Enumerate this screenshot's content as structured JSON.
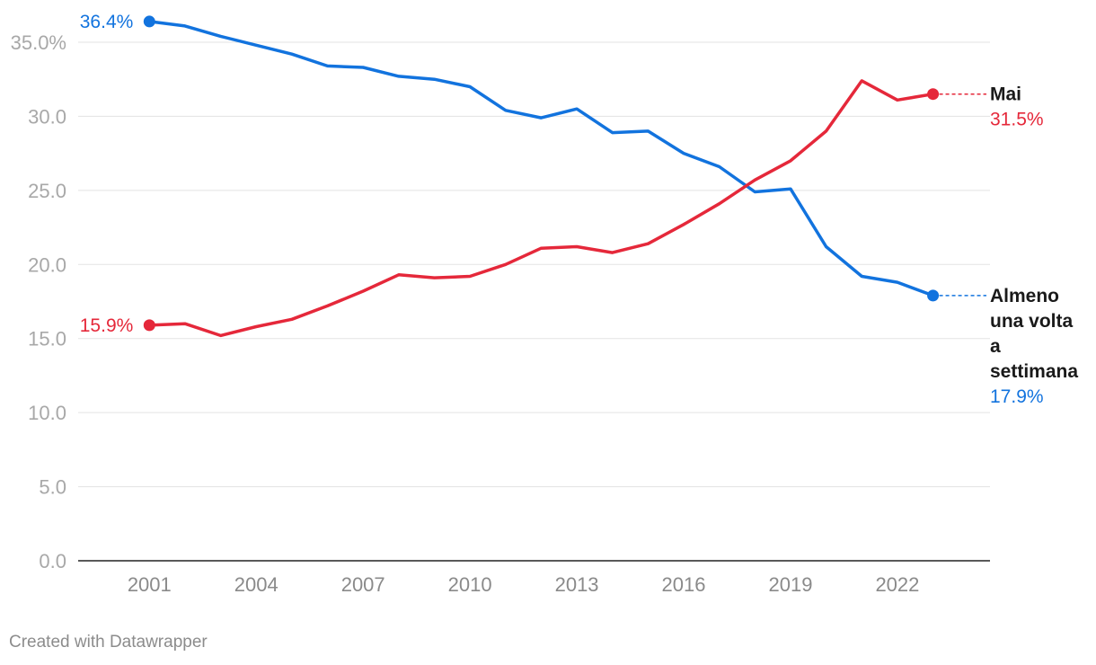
{
  "chart_data": {
    "type": "line",
    "title": "",
    "xlabel": "",
    "ylabel": "",
    "x": [
      2001,
      2002,
      2003,
      2004,
      2005,
      2006,
      2007,
      2008,
      2009,
      2010,
      2011,
      2012,
      2013,
      2014,
      2015,
      2016,
      2017,
      2018,
      2019,
      2020,
      2021,
      2022,
      2023
    ],
    "xlim": [
      1999,
      2024.6
    ],
    "ylim": [
      0,
      35
    ],
    "x_ticks": [
      2001,
      2004,
      2007,
      2010,
      2013,
      2016,
      2019,
      2022
    ],
    "y_ticks": [
      {
        "value": 0,
        "label": "0.0"
      },
      {
        "value": 5,
        "label": "5.0"
      },
      {
        "value": 10,
        "label": "10.0"
      },
      {
        "value": 15,
        "label": "15.0"
      },
      {
        "value": 20,
        "label": "20.0"
      },
      {
        "value": 25,
        "label": "25.0"
      },
      {
        "value": 30,
        "label": "30.0"
      },
      {
        "value": 35,
        "label": "35.0%"
      }
    ],
    "grid": true,
    "legend": "direct labels at line ends",
    "series": [
      {
        "name": "Almeno una volta a settimana",
        "name_lines": [
          "Almeno",
          "una volta",
          "a",
          "settimana"
        ],
        "color": "#1273de",
        "values": [
          36.4,
          36.1,
          35.4,
          34.8,
          34.2,
          33.4,
          33.3,
          32.7,
          32.5,
          32.0,
          30.4,
          29.9,
          30.5,
          28.9,
          29.0,
          27.5,
          26.6,
          24.9,
          25.1,
          21.2,
          19.2,
          18.8,
          17.9
        ],
        "start_label": "36.4%",
        "end_label": "17.9%"
      },
      {
        "name": "Mai",
        "name_lines": [
          "Mai"
        ],
        "color": "#e5283a",
        "values": [
          15.9,
          16.0,
          15.2,
          15.8,
          16.3,
          17.2,
          18.2,
          19.3,
          19.1,
          19.2,
          20.0,
          21.1,
          21.2,
          20.8,
          21.4,
          22.7,
          24.1,
          25.7,
          27.0,
          29.0,
          32.4,
          31.1,
          31.5
        ],
        "start_label": "15.9%",
        "end_label": "31.5%"
      }
    ]
  },
  "footer": {
    "credit": "Created with Datawrapper"
  }
}
